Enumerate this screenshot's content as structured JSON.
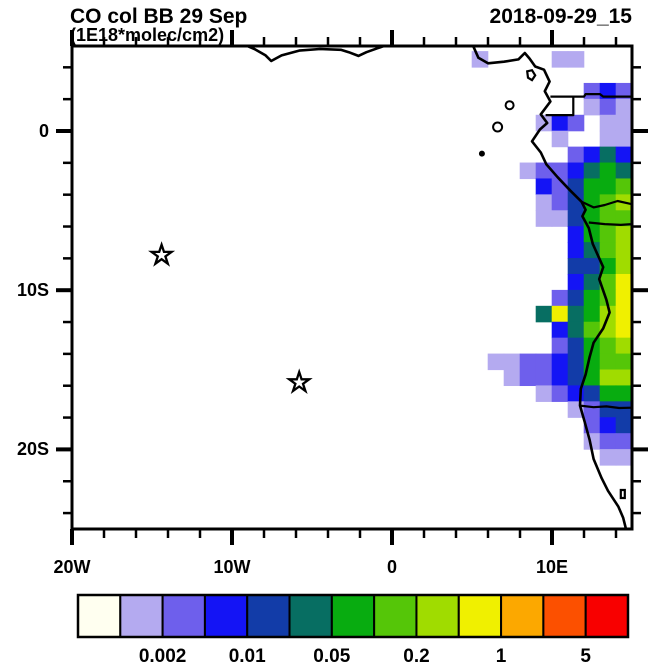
{
  "header": {
    "title": "CO col BB 29 Sep",
    "subtitle": "(1E18*molec/cm2)",
    "datetime": "2018-09-29_15"
  },
  "chart_data": {
    "type": "heatmap",
    "subtype": "filled-contour-map",
    "title": "CO col BB 29 Sep",
    "units": "1E18*molec/cm2",
    "timestamp": "2018-09-29_15",
    "lon_range": [
      -20,
      15
    ],
    "lat_range": [
      -25,
      5.35
    ],
    "x_ticks": [
      {
        "lon": -20,
        "label": "20W"
      },
      {
        "lon": -10,
        "label": "10W"
      },
      {
        "lon": 0,
        "label": "0"
      },
      {
        "lon": 10,
        "label": "10E"
      }
    ],
    "y_ticks": [
      {
        "lat": 0,
        "label": "0"
      },
      {
        "lat": -10,
        "label": "10S"
      },
      {
        "lat": -20,
        "label": "20S"
      }
    ],
    "minor_tick_deg": 2,
    "colorbar": {
      "levels": [
        0.001,
        0.002,
        0.005,
        0.01,
        0.02,
        0.05,
        0.1,
        0.2,
        0.5,
        1,
        2,
        5
      ],
      "colors": [
        "#FFFFF0",
        "#B4AAF0",
        "#6E5FEC",
        "#1414F5",
        "#123CA8",
        "#076E62",
        "#08AC10",
        "#55C608",
        "#A0DC00",
        "#F0F000",
        "#FCA800",
        "#FC5000",
        "#F80000"
      ],
      "labels": [
        {
          "text": "0.002",
          "boundary_index": 2
        },
        {
          "text": "0.01",
          "boundary_index": 4
        },
        {
          "text": "0.05",
          "boundary_index": 6
        },
        {
          "text": "0.2",
          "boundary_index": 8
        },
        {
          "text": "1",
          "boundary_index": 10
        },
        {
          "text": "5",
          "boundary_index": 12
        }
      ]
    },
    "markers": [
      {
        "symbol": "star",
        "lon": -14.4,
        "lat": -7.8
      },
      {
        "symbol": "star",
        "lon": -5.8,
        "lat": -15.8
      }
    ],
    "grid": {
      "lon0": 5,
      "dlon": 1,
      "lat0": 5,
      "dlat": 1,
      "encoding": "rows run north to south from lat0; each value is a colorbar color index, 0 = no shading",
      "rows": [
        [
          1,
          0,
          0,
          0,
          0,
          1,
          1,
          0,
          0,
          0
        ],
        [
          0,
          0,
          0,
          0,
          0,
          0,
          0,
          0,
          0,
          0
        ],
        [
          0,
          0,
          0,
          0,
          0,
          0,
          0,
          2,
          3,
          2
        ],
        [
          0,
          0,
          0,
          0,
          0,
          0,
          0,
          1,
          2,
          1
        ],
        [
          0,
          0,
          0,
          0,
          1,
          3,
          2,
          0,
          1,
          1
        ],
        [
          0,
          0,
          0,
          0,
          0,
          1,
          0,
          0,
          1,
          1
        ],
        [
          0,
          0,
          0,
          0,
          0,
          0,
          2,
          3,
          5,
          3
        ],
        [
          0,
          0,
          0,
          1,
          2,
          2,
          3,
          5,
          6,
          5
        ],
        [
          0,
          0,
          0,
          0,
          3,
          2,
          4,
          6,
          6,
          7
        ],
        [
          0,
          0,
          0,
          0,
          1,
          2,
          4,
          6,
          7,
          8
        ],
        [
          0,
          0,
          0,
          0,
          1,
          1,
          4,
          6,
          7,
          7
        ],
        [
          0,
          0,
          0,
          0,
          0,
          0,
          3,
          6,
          7,
          8
        ],
        [
          0,
          0,
          0,
          0,
          0,
          0,
          3,
          5,
          7,
          8
        ],
        [
          0,
          0,
          0,
          0,
          0,
          0,
          4,
          4,
          6,
          8
        ],
        [
          0,
          0,
          0,
          0,
          0,
          0,
          3,
          5,
          7,
          9
        ],
        [
          0,
          0,
          0,
          0,
          0,
          2,
          4,
          6,
          7,
          9
        ],
        [
          0,
          0,
          0,
          0,
          5,
          9,
          5,
          6,
          8,
          9
        ],
        [
          0,
          0,
          0,
          0,
          0,
          3,
          5,
          7,
          8,
          9
        ],
        [
          0,
          0,
          0,
          0,
          0,
          2,
          4,
          6,
          7,
          8
        ],
        [
          0,
          1,
          1,
          2,
          2,
          3,
          4,
          6,
          7,
          7
        ],
        [
          0,
          0,
          1,
          2,
          2,
          3,
          4,
          6,
          8,
          8
        ],
        [
          0,
          0,
          0,
          0,
          1,
          2,
          3,
          4,
          6,
          6
        ],
        [
          0,
          0,
          0,
          0,
          0,
          0,
          1,
          2,
          4,
          4
        ],
        [
          0,
          0,
          0,
          0,
          0,
          0,
          0,
          2,
          3,
          4
        ],
        [
          0,
          0,
          0,
          0,
          0,
          0,
          0,
          1,
          2,
          2
        ],
        [
          0,
          0,
          0,
          0,
          0,
          0,
          0,
          0,
          1,
          1
        ]
      ]
    },
    "coastline": [
      [
        -9.3,
        5.45
      ],
      [
        -8.6,
        5.15
      ],
      [
        -7.9,
        4.75
      ],
      [
        -7.55,
        4.4
      ],
      [
        -6.9,
        4.75
      ],
      [
        -5.8,
        5.05
      ],
      [
        -4.5,
        5.15
      ],
      [
        -3.2,
        5.1
      ],
      [
        -2.7,
        4.95
      ],
      [
        -2.1,
        4.72
      ],
      [
        -1.6,
        4.95
      ],
      [
        -0.9,
        5.2
      ],
      [
        0,
        5.5
      ],
      [
        1.2,
        5.8
      ],
      [
        2.5,
        6.0
      ],
      [
        4.3,
        6.0
      ],
      [
        5.0,
        5.5
      ],
      [
        5.4,
        4.6
      ],
      [
        6.0,
        4.25
      ],
      [
        7.0,
        4.35
      ],
      [
        7.9,
        4.5
      ],
      [
        8.3,
        4.9
      ],
      [
        8.6,
        4.55
      ],
      [
        8.95,
        4.05
      ],
      [
        9.5,
        3.85
      ],
      [
        9.85,
        3.1
      ],
      [
        9.55,
        2.5
      ],
      [
        9.9,
        1.85
      ],
      [
        9.3,
        1.05
      ],
      [
        9.7,
        0.5
      ],
      [
        9.25,
        0.1
      ],
      [
        8.75,
        -0.65
      ],
      [
        9.3,
        -1.35
      ],
      [
        9.65,
        -2.1
      ],
      [
        10.35,
        -2.9
      ],
      [
        11.15,
        -3.75
      ],
      [
        11.85,
        -4.45
      ],
      [
        12.1,
        -4.95
      ],
      [
        11.9,
        -5.35
      ],
      [
        12.3,
        -6.1
      ],
      [
        12.55,
        -7.1
      ],
      [
        13.2,
        -8.55
      ],
      [
        12.95,
        -9.3
      ],
      [
        13.4,
        -10.6
      ],
      [
        13.6,
        -11.4
      ],
      [
        13.2,
        -12.4
      ],
      [
        12.6,
        -13.3
      ],
      [
        12.35,
        -14.2
      ],
      [
        12.1,
        -15.3
      ],
      [
        11.8,
        -16.2
      ],
      [
        11.75,
        -17.25
      ],
      [
        12.05,
        -18.3
      ],
      [
        12.35,
        -19.4
      ],
      [
        12.6,
        -20.6
      ],
      [
        13.1,
        -21.8
      ],
      [
        13.5,
        -22.6
      ],
      [
        14.15,
        -23.6
      ],
      [
        14.45,
        -24.3
      ],
      [
        14.65,
        -25.1
      ]
    ],
    "borders": [
      [
        [
          9.9,
          2.16
        ],
        [
          12.0,
          2.16
        ],
        [
          12.1,
          2.32
        ],
        [
          13.0,
          2.32
        ],
        [
          13.2,
          2.16
        ],
        [
          15,
          2.16
        ]
      ],
      [
        [
          9.6,
          1.0
        ],
        [
          11.33,
          1.0
        ],
        [
          11.33,
          2.16
        ]
      ],
      [
        [
          11.85,
          -4.45
        ],
        [
          12.6,
          -4.8
        ],
        [
          13.3,
          -4.65
        ],
        [
          14.1,
          -4.4
        ],
        [
          15,
          -4.6
        ]
      ],
      [
        [
          12.3,
          -5.75
        ],
        [
          13.3,
          -5.85
        ],
        [
          14.3,
          -5.9
        ],
        [
          15,
          -5.85
        ]
      ],
      [
        [
          11.75,
          -17.25
        ],
        [
          12.6,
          -17.35
        ],
        [
          13.4,
          -17.3
        ],
        [
          14.2,
          -17.4
        ],
        [
          15,
          -17.38
        ]
      ]
    ],
    "islands": [
      {
        "type": "polygon",
        "points": [
          [
            8.45,
            3.75
          ],
          [
            8.75,
            3.82
          ],
          [
            8.95,
            3.5
          ],
          [
            8.75,
            3.2
          ],
          [
            8.5,
            3.35
          ]
        ],
        "fill": "none"
      },
      {
        "type": "circle",
        "lon": 7.35,
        "lat": 1.62,
        "r": 4,
        "fill": "none"
      },
      {
        "type": "circle",
        "lon": 6.6,
        "lat": 0.25,
        "r": 4.5,
        "fill": "none"
      },
      {
        "type": "circle",
        "lon": 5.62,
        "lat": -1.42,
        "r": 2,
        "fill": "#000"
      },
      {
        "type": "polygon",
        "points": [
          [
            14.3,
            -22.55
          ],
          [
            14.55,
            -22.55
          ],
          [
            14.55,
            -23.05
          ],
          [
            14.3,
            -23.05
          ]
        ],
        "fill": "none"
      }
    ]
  }
}
